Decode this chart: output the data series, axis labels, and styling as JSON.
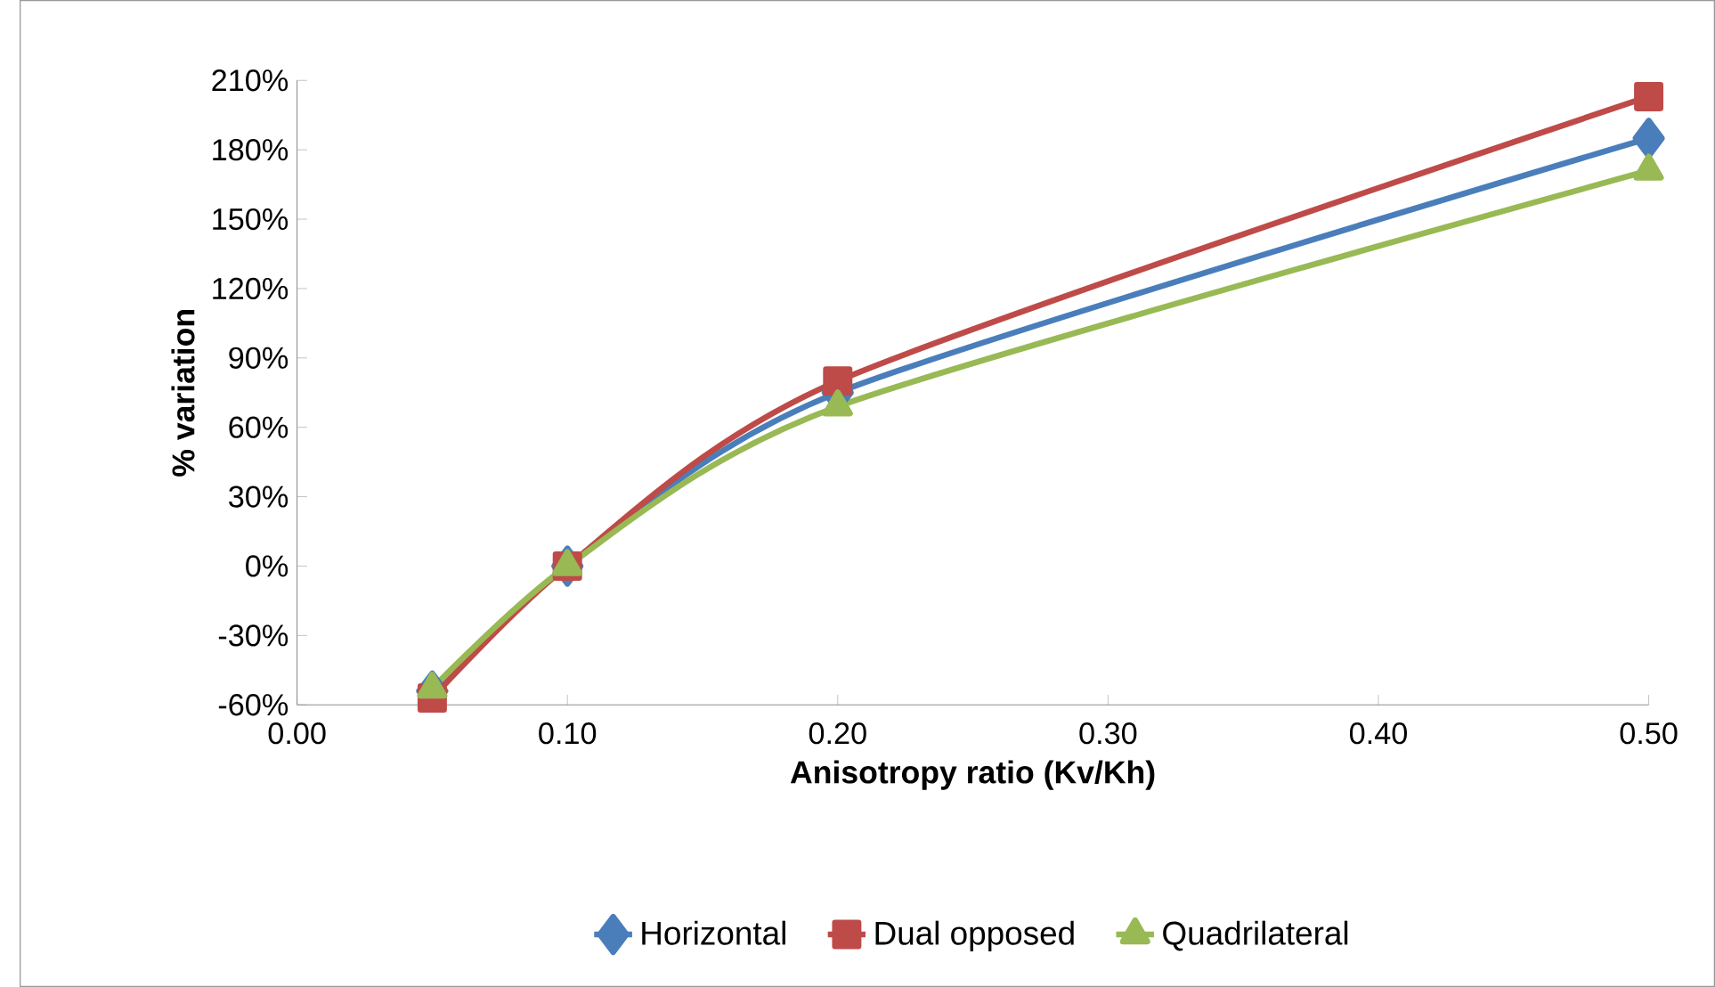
{
  "chart_data": {
    "type": "line",
    "xlabel": "Anisotropy ratio (Kv/Kh)",
    "ylabel": "% variation",
    "xlim": [
      0,
      0.5
    ],
    "ylim": [
      -60,
      210
    ],
    "xticks": [
      {
        "value": 0,
        "label": "0.00"
      },
      {
        "value": 0.1,
        "label": "0.10"
      },
      {
        "value": 0.2,
        "label": "0.20"
      },
      {
        "value": 0.3,
        "label": "0.30"
      },
      {
        "value": 0.4,
        "label": "0.40"
      },
      {
        "value": 0.5,
        "label": "0.50"
      }
    ],
    "yticks": [
      {
        "value": -60,
        "label": "-60%"
      },
      {
        "value": -30,
        "label": "-30%"
      },
      {
        "value": 0,
        "label": "0%"
      },
      {
        "value": 30,
        "label": "30%"
      },
      {
        "value": 60,
        "label": "60%"
      },
      {
        "value": 90,
        "label": "90%"
      },
      {
        "value": 120,
        "label": "120%"
      },
      {
        "value": 150,
        "label": "150%"
      },
      {
        "value": 180,
        "label": "180%"
      },
      {
        "value": 210,
        "label": "210%"
      }
    ],
    "x": [
      0.05,
      0.1,
      0.2,
      0.5
    ],
    "legend": "bottom",
    "series": [
      {
        "name": "Horizontal",
        "color": "#4a7ebb",
        "marker": "diamond",
        "values": [
          -54,
          0,
          75,
          185
        ]
      },
      {
        "name": "Dual opposed",
        "color": "#be4b48",
        "marker": "square",
        "values": [
          -57,
          0,
          80,
          203
        ]
      },
      {
        "name": "Quadrilateral",
        "color": "#98b954",
        "marker": "triangle",
        "values": [
          -53,
          0,
          69,
          171
        ]
      }
    ]
  }
}
